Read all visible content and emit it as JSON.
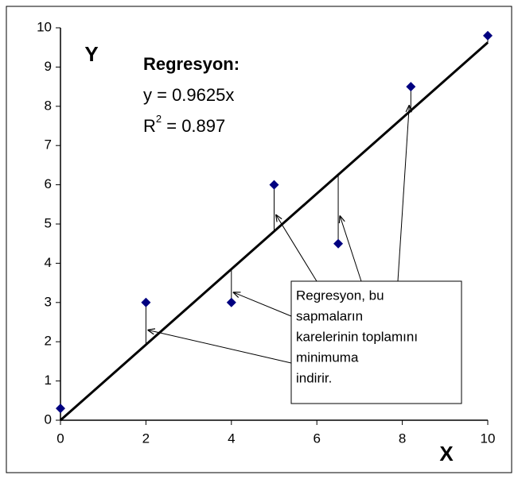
{
  "chart_data": {
    "type": "scatter",
    "x_label": "X",
    "y_label": "Y",
    "x": [
      0,
      2,
      4,
      5,
      6.5,
      8.2,
      10
    ],
    "series": [
      {
        "name": "Y",
        "color": "#000080",
        "values": [
          0.3,
          3,
          3,
          6,
          4.5,
          8.5,
          9.8
        ]
      }
    ],
    "regression": {
      "slope": 0.9625,
      "color": "#000000"
    },
    "equation": {
      "title": "Regresyon:",
      "line": "y = 0.9625x",
      "r2_base": "R",
      "r2_sup": "2",
      "r2_rest": " = 0.897"
    },
    "note": [
      "Regresyon, bu",
      "sapmaların",
      "karelerinin toplamını",
      "minimuma",
      "indirir."
    ],
    "xlim": [
      0,
      10
    ],
    "xticks": [
      0,
      2,
      4,
      6,
      8,
      10
    ],
    "ylim": [
      0,
      10
    ],
    "yticks": [
      0,
      1,
      2,
      3,
      4,
      5,
      6,
      7,
      8,
      9,
      10
    ],
    "grid": false
  }
}
